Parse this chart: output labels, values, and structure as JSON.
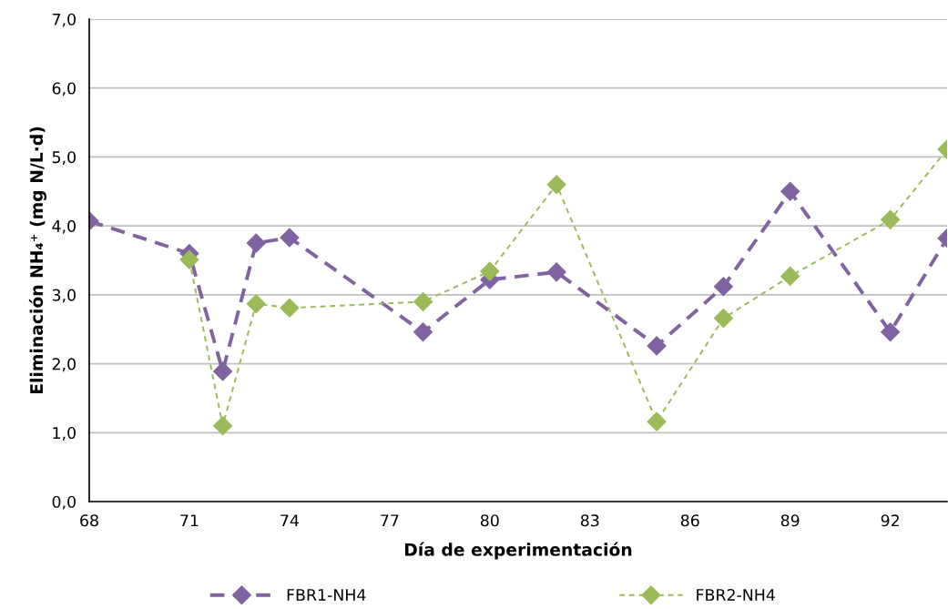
{
  "chart_data": {
    "type": "line",
    "xlabel": "Día de experimentación",
    "ylabel": "Eliminación NH₄⁺ (mg N/L·d)",
    "xlim": [
      68,
      93.7
    ],
    "xticks": [
      68,
      71,
      74,
      77,
      80,
      83,
      86,
      89,
      92
    ],
    "ylim": [
      0,
      7
    ],
    "yticks": [
      {
        "value": 0,
        "label": "0,0"
      },
      {
        "value": 1,
        "label": "1,0"
      },
      {
        "value": 2,
        "label": "2,0"
      },
      {
        "value": 3,
        "label": "3,0"
      },
      {
        "value": 4,
        "label": "4,0"
      },
      {
        "value": 5,
        "label": "5,0"
      },
      {
        "value": 6,
        "label": "6,0"
      },
      {
        "value": 7,
        "label": "7,0"
      }
    ],
    "grid": "y",
    "legend": "bottom",
    "marker": "diamond",
    "series": [
      {
        "name": "FBR1-NH4",
        "color": "#8064a2",
        "line_style": "dashed",
        "x": [
          68,
          71,
          72,
          73,
          74,
          78,
          80,
          82,
          85,
          87,
          89,
          92,
          93.7
        ],
        "values": [
          4.07,
          3.6,
          1.89,
          3.75,
          3.83,
          2.46,
          3.22,
          3.33,
          2.26,
          3.12,
          4.5,
          2.46,
          3.82
        ]
      },
      {
        "name": "FBR2-NH4",
        "color": "#9bbb59",
        "line_style": "dotted",
        "x": [
          71,
          72,
          73,
          74,
          78,
          80,
          82,
          85,
          87,
          89,
          92,
          93.7
        ],
        "values": [
          3.51,
          1.1,
          2.87,
          2.81,
          2.9,
          3.34,
          4.6,
          1.16,
          2.66,
          3.27,
          4.09,
          5.11
        ]
      }
    ]
  }
}
